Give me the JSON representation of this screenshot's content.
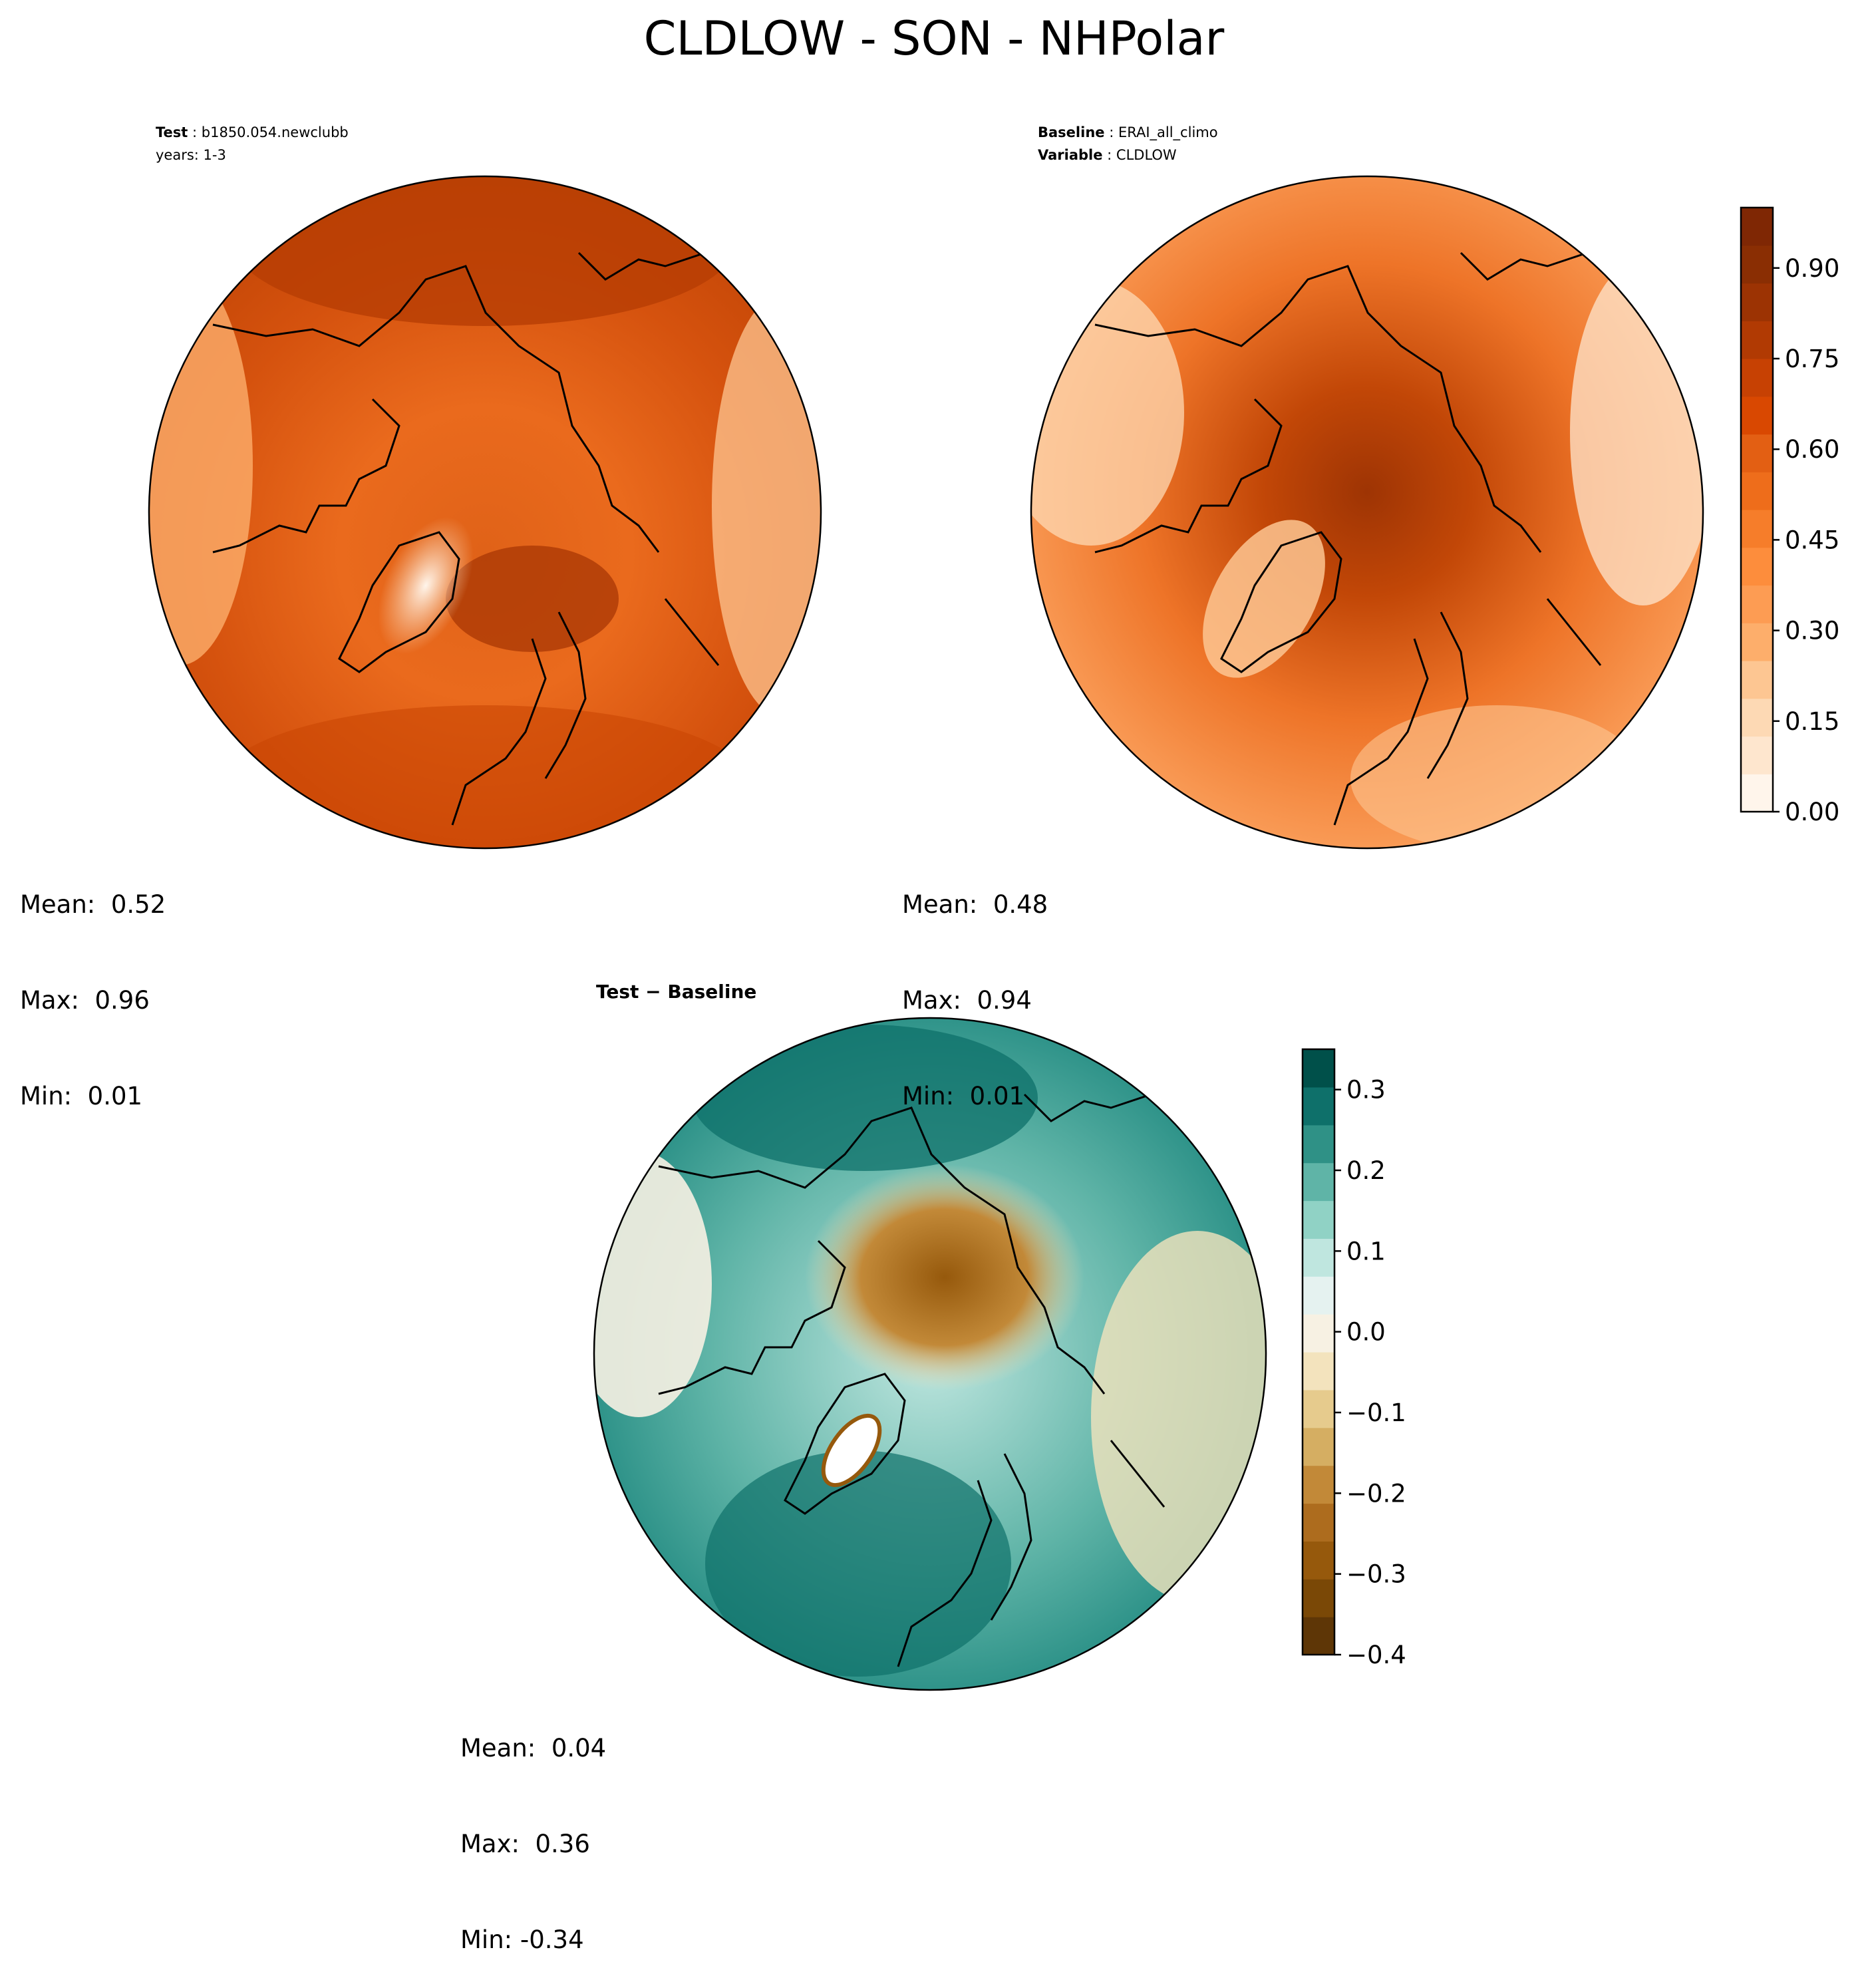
{
  "title": "CLDLOW - SON - NHPolar",
  "panels": {
    "test": {
      "header_label": "Test",
      "header_value": "b1850.054.newclubb",
      "header_line2": "years: 1-3",
      "mean_label": "Mean:",
      "mean": "0.52",
      "max_label": "Max:",
      "max": "0.96",
      "min_label": "Min:",
      "min": "0.01"
    },
    "baseline": {
      "header_label": "Baseline",
      "header_value": "ERAI_all_climo",
      "header_line2_label": "Variable",
      "header_line2_value": "CLDLOW",
      "mean_label": "Mean:",
      "mean": "0.48",
      "max_label": "Max:",
      "max": "0.94",
      "min_label": "Min:",
      "min": "0.01"
    },
    "diff": {
      "header": "Test − Baseline",
      "mean_label": "Mean:",
      "mean": "0.04",
      "max_label": "Max:",
      "max": "0.36",
      "min_label": "Min:",
      "min": "-0.34"
    }
  },
  "chart_data": [
    {
      "type": "heatmap",
      "projection": "north polar stereographic",
      "title": "Test: b1850.054.newclubb",
      "subtitle": "years: 1-3",
      "variable": "CLDLOW",
      "season": "SON",
      "stats": {
        "mean": 0.52,
        "max": 0.96,
        "min": 0.01
      }
    },
    {
      "type": "heatmap",
      "projection": "north polar stereographic",
      "title": "Baseline: ERAI_all_climo",
      "subtitle": "Variable: CLDLOW",
      "stats": {
        "mean": 0.48,
        "max": 0.94,
        "min": 0.01
      }
    },
    {
      "type": "heatmap",
      "projection": "north polar stereographic",
      "title": "Test − Baseline",
      "stats": {
        "mean": 0.04,
        "max": 0.36,
        "min": -0.34
      }
    }
  ],
  "colorbars": {
    "abs": {
      "range": [
        0,
        1
      ],
      "ticks": [
        0.0,
        0.15,
        0.3,
        0.45,
        0.6,
        0.75,
        0.9
      ],
      "tick_labels": [
        "0.00",
        "0.15",
        "0.30",
        "0.45",
        "0.60",
        "0.75",
        "0.90"
      ],
      "colors": [
        "#fff5eb",
        "#fee6ce",
        "#fdd9b4",
        "#fdc692",
        "#fdae6b",
        "#fd9c53",
        "#fd8d3c",
        "#f67d2a",
        "#ee6d1b",
        "#e35f13",
        "#d94801",
        "#c74103",
        "#b13a03",
        "#9c3303",
        "#8a2e03",
        "#7f2704"
      ]
    },
    "diff": {
      "range": [
        -0.4,
        0.35
      ],
      "ticks": [
        -0.4,
        -0.3,
        -0.2,
        -0.1,
        0.0,
        0.1,
        0.2,
        0.3
      ],
      "tick_labels": [
        "−0.4",
        "−0.3",
        "−0.2",
        "−0.1",
        "0.0",
        "0.1",
        "0.2",
        "0.3"
      ],
      "colors": [
        "#5e3606",
        "#7a4806",
        "#96590c",
        "#ad6c1e",
        "#c28938",
        "#d5ae62",
        "#e6cb8d",
        "#f3e3bd",
        "#f7f1e3",
        "#e5f2f0",
        "#bfe6df",
        "#90d2c5",
        "#5fb4a7",
        "#2f9186",
        "#0e706a",
        "#00504a"
      ]
    }
  }
}
